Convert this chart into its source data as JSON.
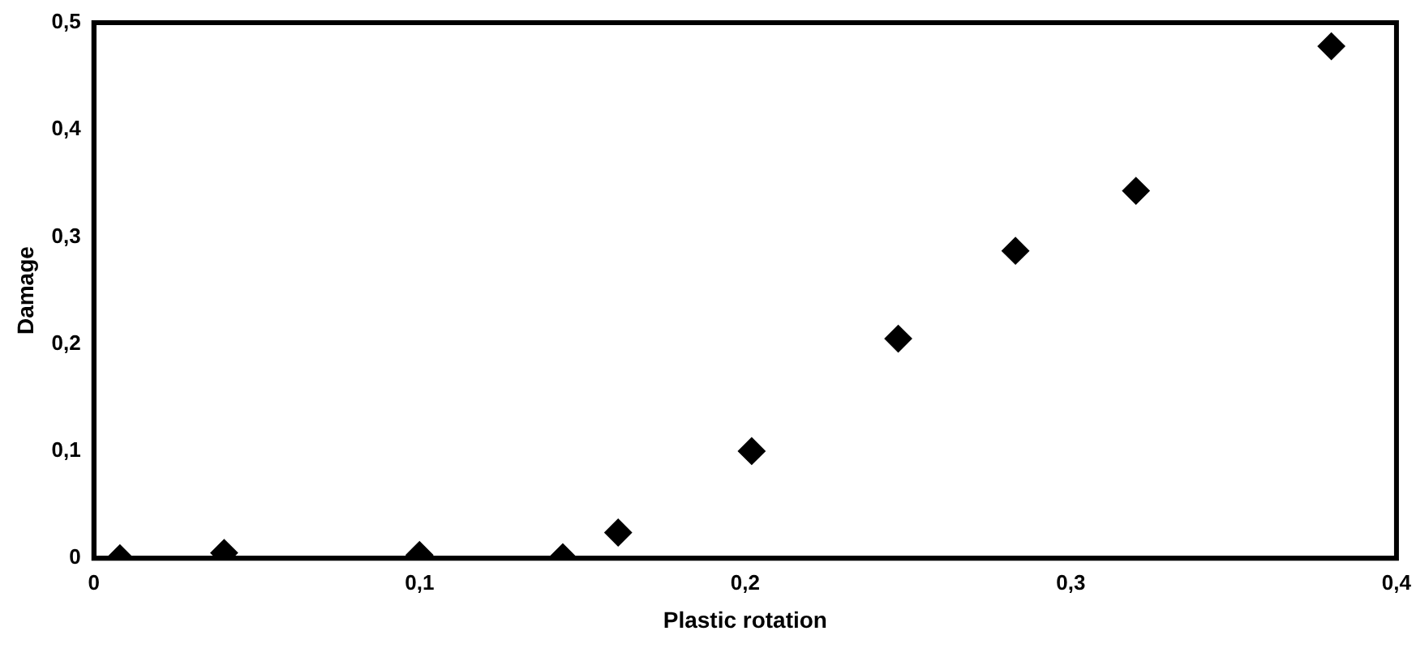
{
  "chart_data": {
    "type": "scatter",
    "xlabel": "Plastic rotation",
    "ylabel": "Damage",
    "x": [
      0.008,
      0.04,
      0.1,
      0.144,
      0.161,
      0.202,
      0.247,
      0.283,
      0.32,
      0.38
    ],
    "series": [
      {
        "color": "#000000",
        "values": [
          0,
          0.005,
          0.003,
          0.001,
          0.024,
          0.1,
          0.205,
          0.287,
          0.343,
          0.478
        ]
      }
    ],
    "xlim": [
      0,
      0.4
    ],
    "ylim": [
      0,
      0.5
    ],
    "xticks": [
      0,
      {
        "value": 0.1,
        "label": "0,1"
      },
      {
        "value": 0.2,
        "label": "0,2"
      },
      {
        "value": 0.3,
        "label": "0,3"
      },
      {
        "value": 0.4,
        "label": "0,4"
      }
    ],
    "yticks": [
      0,
      {
        "value": 0.1,
        "label": "0,1"
      },
      {
        "value": 0.2,
        "label": "0,2"
      },
      {
        "value": 0.3,
        "label": "0,3"
      },
      {
        "value": 0.4,
        "label": "0,4"
      },
      {
        "value": 0.5,
        "label": "0,5"
      }
    ],
    "marker": "diamond",
    "grid": false,
    "legend": false
  }
}
